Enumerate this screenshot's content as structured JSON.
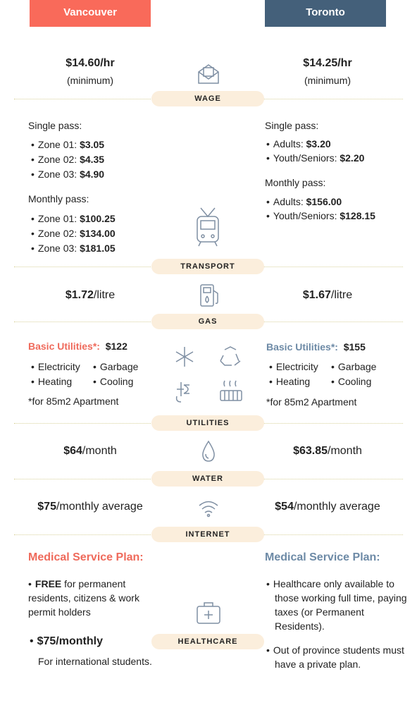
{
  "header": {
    "vancouver": "Vancouver",
    "toronto": "Toronto"
  },
  "wage": {
    "label": "WAGE",
    "vancouver": {
      "amount": "$14.60/hr",
      "note": "(minimum)"
    },
    "toronto": {
      "amount": "$14.25/hr",
      "note": "(minimum)"
    }
  },
  "transport": {
    "label": "TRANSPORT",
    "vancouver": {
      "single_title": "Single pass:",
      "single": [
        {
          "name": "Zone 01:",
          "price": "$3.05"
        },
        {
          "name": "Zone 02:",
          "price": "$4.35"
        },
        {
          "name": "Zone 03:",
          "price": "$4.90"
        }
      ],
      "monthly_title": "Monthly pass:",
      "monthly": [
        {
          "name": "Zone 01:",
          "price": "$100.25"
        },
        {
          "name": "Zone 02:",
          "price": "$134.00"
        },
        {
          "name": "Zone 03:",
          "price": "$181.05"
        }
      ]
    },
    "toronto": {
      "single_title": "Single pass:",
      "single": [
        {
          "name": "Adults:",
          "price": "$3.20"
        },
        {
          "name": "Youth/Seniors:",
          "price": "$2.20"
        }
      ],
      "monthly_title": "Monthly pass:",
      "monthly": [
        {
          "name": "Adults:",
          "price": "$156.00"
        },
        {
          "name": "Youth/Seniors:",
          "price": "$128.15"
        }
      ]
    }
  },
  "gas": {
    "label": "GAS",
    "vancouver": {
      "amount": "$1.72",
      "unit": "/litre"
    },
    "toronto": {
      "amount": "$1.67",
      "unit": "/litre"
    }
  },
  "utilities": {
    "label": "UTILITIES",
    "vancouver": {
      "title": "Basic Utilities*:",
      "amount": "$122",
      "items": [
        "Electricity",
        "Garbage",
        "Heating",
        "Cooling"
      ],
      "note": "*for 85m2 Apartment"
    },
    "toronto": {
      "title": "Basic Utilities*:",
      "amount": "$155",
      "items": [
        "Electricity",
        "Garbage",
        "Heating",
        "Cooling"
      ],
      "note": "*for 85m2 Apartment"
    }
  },
  "water": {
    "label": "WATER",
    "vancouver": {
      "amount": "$64",
      "unit": "/month"
    },
    "toronto": {
      "amount": "$63.85",
      "unit": "/month"
    }
  },
  "internet": {
    "label": "INTERNET",
    "vancouver": {
      "amount": "$75",
      "unit": "/monthly average"
    },
    "toronto": {
      "amount": "$54",
      "unit": "/monthly average"
    }
  },
  "healthcare": {
    "label": "HEALTHCARE",
    "vancouver": {
      "title": "Medical Service Plan:",
      "items": [
        {
          "bold": "FREE",
          "text": "for permanent residents, citizens & work permit holders"
        },
        {
          "bold": "$75/monthly",
          "text": "For international students."
        }
      ]
    },
    "toronto": {
      "title": "Medical Service Plan:",
      "items": [
        "Healthcare only available to those working full time, paying taxes (or Permanent Residents).",
        "Out of province students must have a private plan."
      ]
    }
  }
}
